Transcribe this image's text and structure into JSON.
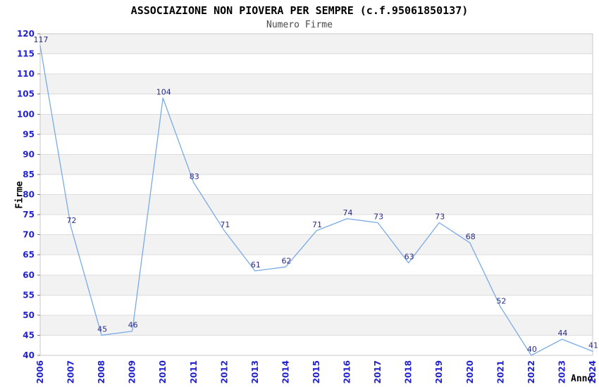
{
  "chart_data": {
    "type": "line",
    "title": "ASSOCIAZIONE NON PIOVERA PER SEMPRE (c.f.95061850137)",
    "subtitle": "Numero Firme",
    "xlabel": "Anno",
    "ylabel": "Firme",
    "categories": [
      "2006",
      "2007",
      "2008",
      "2009",
      "2010",
      "2011",
      "2012",
      "2013",
      "2014",
      "2015",
      "2016",
      "2017",
      "2018",
      "2019",
      "2020",
      "2021",
      "2022",
      "2023",
      "2024"
    ],
    "values": [
      117,
      72,
      45,
      46,
      104,
      83,
      71,
      61,
      62,
      71,
      74,
      73,
      63,
      73,
      68,
      52,
      40,
      44,
      41
    ],
    "ylim": [
      40,
      120
    ],
    "ytick_step": 5,
    "grid": true,
    "legend_position": "none",
    "colors": {
      "line": "#7aaae8",
      "tick_label": "#2222cc",
      "data_label": "#2b2b85",
      "band": "#f2f2f2",
      "gridline": "#dcdcdc",
      "border": "#c8c8c8",
      "tick_mark": "#777777",
      "title": "#000000",
      "subtitle": "#4a4a4a",
      "background": "#ffffff"
    }
  }
}
